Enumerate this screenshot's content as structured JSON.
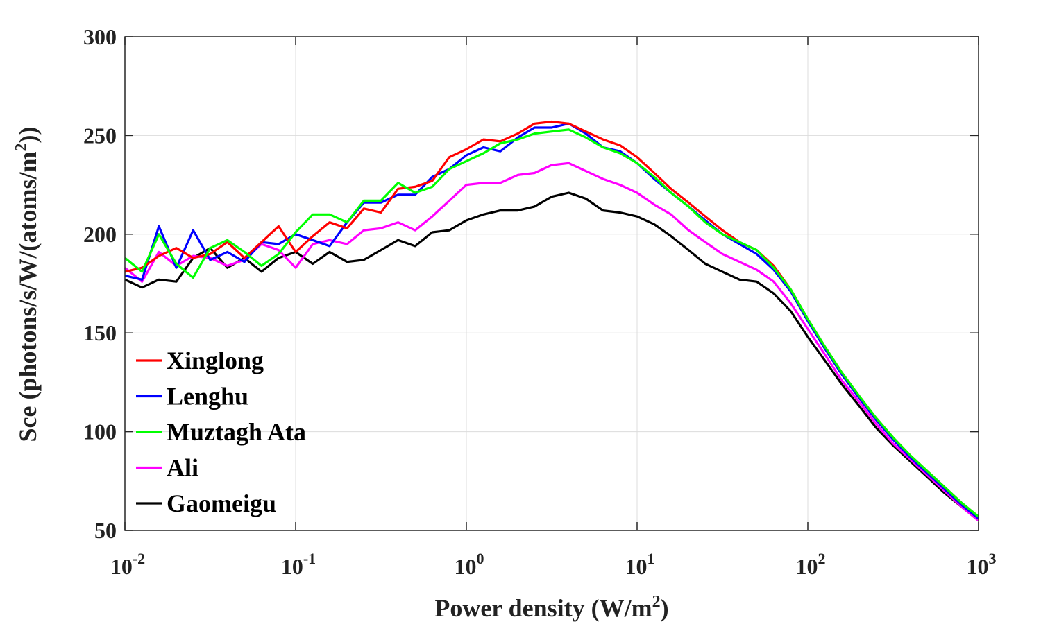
{
  "chart_data": {
    "type": "line",
    "xscale": "log",
    "xlabel": "Power density (W/m",
    "xlabel_sup": "2",
    "xlabel_end": ")",
    "ylabel": "Sce (photons/s/W/(atoms/m",
    "ylabel_sup": "2",
    "ylabel_end": "))",
    "xlim": [
      0.01,
      1000
    ],
    "ylim": [
      50,
      300
    ],
    "yticks": [
      50,
      100,
      150,
      200,
      250,
      300
    ],
    "ytick_labels": [
      "50",
      "100",
      "150",
      "200",
      "250",
      "300"
    ],
    "xticks": [
      0.01,
      0.1,
      1,
      10,
      100,
      1000
    ],
    "xtick_base": [
      "10",
      "10",
      "10",
      "10",
      "10",
      "10"
    ],
    "xtick_exp": [
      "-2",
      "-1",
      "0",
      "1",
      "2",
      "3"
    ],
    "grid": true,
    "legend_position": "bottom-left",
    "x": [
      0.01,
      0.0126,
      0.0158,
      0.02,
      0.0251,
      0.0316,
      0.0398,
      0.0501,
      0.0631,
      0.0794,
      0.1,
      0.126,
      0.158,
      0.2,
      0.251,
      0.316,
      0.398,
      0.501,
      0.631,
      0.794,
      1,
      1.26,
      1.58,
      2,
      2.51,
      3.16,
      3.98,
      5.01,
      6.31,
      7.94,
      10,
      12.6,
      15.8,
      20,
      25.1,
      31.6,
      39.8,
      50.1,
      63.1,
      79.4,
      100,
      126,
      158,
      200,
      251,
      316,
      398,
      501,
      631,
      794,
      1000
    ],
    "series": [
      {
        "name": "Xinglong",
        "color": "#ff0000",
        "values": [
          181,
          183,
          189,
          193,
          188,
          190,
          196,
          188,
          196,
          204,
          191,
          199,
          206,
          203,
          213,
          211,
          223,
          224,
          227,
          239,
          243,
          248,
          247,
          251,
          256,
          257,
          256,
          252,
          248,
          245,
          239,
          231,
          223,
          216,
          209,
          202,
          196,
          192,
          184,
          172,
          157,
          143,
          130,
          118,
          107,
          97,
          88,
          80,
          72,
          64,
          57
        ]
      },
      {
        "name": "Lenghu",
        "color": "#0000ff",
        "values": [
          179,
          177,
          204,
          183,
          202,
          187,
          191,
          186,
          196,
          195,
          200,
          197,
          194,
          206,
          216,
          216,
          220,
          220,
          229,
          233,
          240,
          244,
          242,
          249,
          254,
          254,
          256,
          251,
          244,
          242,
          236,
          228,
          221,
          214,
          207,
          200,
          195,
          190,
          182,
          171,
          156,
          142,
          129,
          117,
          106,
          96,
          87,
          79,
          71,
          63,
          56
        ]
      },
      {
        "name": "Muztagh Ata",
        "color": "#00ff00",
        "values": [
          188,
          181,
          200,
          185,
          178,
          193,
          197,
          191,
          184,
          190,
          201,
          210,
          210,
          206,
          217,
          217,
          226,
          221,
          224,
          233,
          237,
          241,
          246,
          248,
          251,
          252,
          253,
          249,
          244,
          241,
          236,
          229,
          221,
          214,
          206,
          200,
          196,
          192,
          183,
          172,
          157,
          143,
          130,
          118,
          107,
          97,
          88,
          80,
          72,
          64,
          57
        ]
      },
      {
        "name": "Ali",
        "color": "#ff00ff",
        "values": [
          183,
          176,
          191,
          184,
          189,
          188,
          184,
          187,
          195,
          192,
          183,
          195,
          197,
          195,
          202,
          203,
          206,
          202,
          209,
          217,
          225,
          226,
          226,
          230,
          231,
          235,
          236,
          232,
          228,
          225,
          221,
          215,
          210,
          202,
          196,
          190,
          186,
          182,
          176,
          165,
          152,
          139,
          126,
          115,
          104,
          94,
          86,
          78,
          70,
          62,
          55
        ]
      },
      {
        "name": "Gaomeigu",
        "color": "#000000",
        "values": [
          177,
          173,
          177,
          176,
          188,
          193,
          183,
          188,
          181,
          188,
          191,
          185,
          191,
          186,
          187,
          192,
          197,
          194,
          201,
          202,
          207,
          210,
          212,
          212,
          214,
          219,
          221,
          218,
          212,
          211,
          209,
          205,
          199,
          192,
          185,
          181,
          177,
          176,
          170,
          161,
          148,
          136,
          124,
          113,
          102,
          93,
          85,
          77,
          69,
          62,
          55
        ]
      }
    ]
  }
}
